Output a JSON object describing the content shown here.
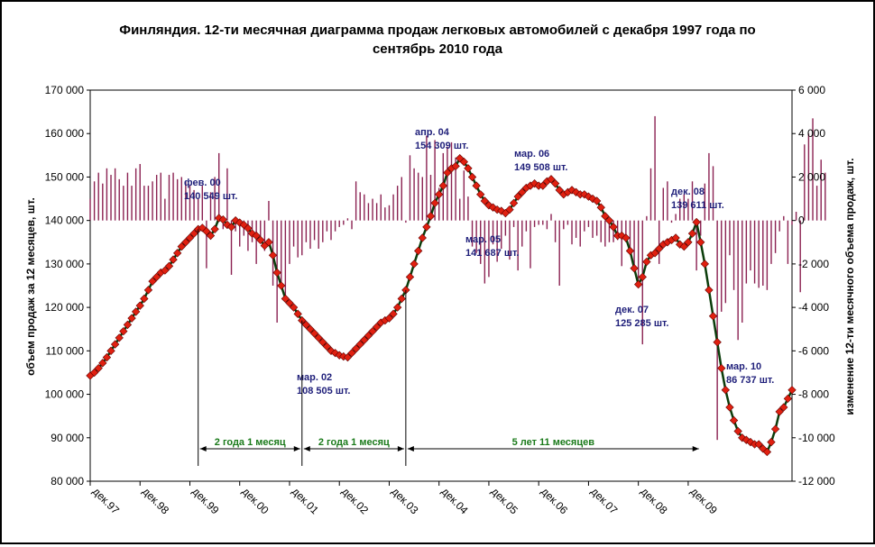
{
  "chart_data": {
    "type": "line",
    "title_line1": "Финляндия. 12-ти месячная диаграмма продаж легковых автомобилей  с декабря 1997 года по",
    "title_line2": "сентябрь 2010 года",
    "ylabel": "объем продаж за 12 месяцев, шт.",
    "y2label": "изменение 12-ти месячного объема продаж, шт.",
    "ylim": [
      80000,
      170000
    ],
    "y_ticks": [
      "80 000",
      "90 000",
      "100 000",
      "110 000",
      "120 000",
      "130 000",
      "140 000",
      "150 000",
      "160 000",
      "170 000"
    ],
    "y2lim": [
      -12000,
      6000
    ],
    "y2_ticks": [
      "-12 000",
      "-10 000",
      "-8 000",
      "-6 000",
      "-4 000",
      "-2 000",
      "0",
      "2 000",
      "4 000",
      "6 000"
    ],
    "x_labels": [
      "дек.97",
      "дек.98",
      "дек.99",
      "дек.00",
      "дек.01",
      "дек.02",
      "дек.03",
      "дек.04",
      "дек.05",
      "дек.06",
      "дек.07",
      "дек.08",
      "дек.09"
    ],
    "start_month": "дек.97",
    "series": [
      {
        "values": [
          104300,
          105000,
          106000,
          107200,
          108500,
          110000,
          111500,
          113000,
          114500,
          116000,
          117500,
          119000,
          120400,
          122000,
          124000,
          126000,
          127000,
          128000,
          128500,
          129500,
          131000,
          132500,
          134000,
          135000,
          136000,
          137000,
          138000,
          138300,
          137500,
          136500,
          138000,
          140549,
          140200,
          139000,
          138500,
          140000,
          139500,
          139000,
          138200,
          137000,
          136500,
          135500,
          134200,
          135000,
          132000,
          128000,
          125000,
          122000,
          121000,
          120000,
          118500,
          117000,
          116000,
          115000,
          114000,
          113000,
          112000,
          111000,
          110000,
          109500,
          109000,
          108700,
          108505,
          109500,
          110500,
          111500,
          112500,
          113500,
          114500,
          115500,
          116500,
          117000,
          117500,
          118500,
          120000,
          122000,
          124000,
          127000,
          130000,
          133000,
          136000,
          138500,
          141000,
          144000,
          146000,
          148000,
          151000,
          152000,
          152500,
          154309,
          153500,
          152000,
          150000,
          148000,
          146000,
          144500,
          143500,
          143000,
          142500,
          142200,
          141687,
          142500,
          144000,
          145500,
          146500,
          147500,
          148000,
          148500,
          148000,
          148000,
          149000,
          149508,
          148500,
          147000,
          146000,
          146500,
          147000,
          146500,
          146000,
          146000,
          145500,
          145000,
          144500,
          143000,
          141000,
          140000,
          138500,
          136500,
          136500,
          136000,
          133000,
          129000,
          125285,
          127000,
          130500,
          132000,
          132500,
          133500,
          134500,
          135000,
          135500,
          136000,
          134500,
          134000,
          135000,
          137000,
          139611,
          135000,
          130000,
          124000,
          118000,
          112000,
          106000,
          101000,
          97000,
          94000,
          91500,
          90000,
          89500,
          89000,
          88500,
          88500,
          87500,
          86737,
          89000,
          92000,
          96000,
          97000,
          99000,
          101000
        ]
      },
      {
        "values": [
          1000,
          1800,
          2200,
          1700,
          2400,
          2100,
          2400,
          1900,
          1600,
          2200,
          1600,
          2400,
          2600,
          1600,
          1600,
          1800,
          2100,
          2200,
          1000,
          2100,
          2200,
          1900,
          2000,
          1800,
          1600,
          1400,
          1000,
          1600,
          -2200,
          1300,
          2000,
          3100,
          -400,
          2400,
          -2500,
          -500,
          -1200,
          -700,
          -1400,
          -1000,
          -2000,
          -800,
          -1400,
          900,
          -3000,
          -4700,
          -3000,
          -3500,
          -2000,
          -1200,
          -1700,
          -1600,
          -1000,
          -1300,
          -900,
          -1300,
          -1000,
          -500,
          -900,
          -500,
          -300,
          -200,
          100,
          -400,
          1800,
          1300,
          1200,
          800,
          1000,
          800,
          1200,
          600,
          700,
          1200,
          1600,
          2000,
          -100,
          3000,
          2400,
          2200,
          2000,
          3900,
          2100,
          3700,
          1500,
          3100,
          3400,
          3600,
          2900,
          1000,
          2300,
          1100,
          -1200,
          -1500,
          -2000,
          -2900,
          -2600,
          -1100,
          -1900,
          -1300,
          -700,
          -1800,
          -300,
          -2300,
          -1200,
          -500,
          -2200,
          -300,
          -200,
          -200,
          -400,
          300,
          -1000,
          -3000,
          -400,
          -200,
          -1100,
          -800,
          -1200,
          -500,
          -300,
          -800,
          -700,
          -1000,
          -1200,
          -1000,
          -1000,
          -900,
          -2100,
          -1000,
          -1400,
          -2100,
          -3000,
          -5700,
          200,
          2400,
          4800,
          -2000,
          1500,
          1800,
          -100,
          300,
          1000,
          1200,
          1000,
          1800,
          -2300,
          -700,
          1700,
          3100,
          2500,
          -10100,
          -4200,
          -3800,
          -1600,
          -3200,
          -5500,
          -4700,
          -2900,
          -2300,
          -2900,
          -3100,
          -3000,
          -3200,
          -2000,
          -1500,
          -500,
          200,
          -2000,
          -200,
          400,
          -3300,
          3500,
          4000,
          4700,
          1600,
          2800,
          2200
        ]
      }
    ],
    "annotations": [
      {
        "month": "фев. 00",
        "value": "140 549 шт."
      },
      {
        "month": "мар. 02",
        "value": "108 505 шт."
      },
      {
        "month": "апр. 04",
        "value": "154 309 шт."
      },
      {
        "month": "мар. 05",
        "value": "141 687 шт."
      },
      {
        "month": "мар. 06",
        "value": "149 508 шт."
      },
      {
        "month": "дек. 07",
        "value": "125 285 шт."
      },
      {
        "month": "дек. 08",
        "value": "139 611 шт."
      },
      {
        "month": "мар. 10",
        "value": "86 737 шт."
      }
    ],
    "durations": [
      "2 года 1 месяц",
      "2 года 1 месяц",
      "5 лет 11 месяцев"
    ],
    "colors": {
      "line": "#0b3d0b",
      "marker": "#e02010",
      "marker_edge": "#600000",
      "bar": "#8b2252",
      "annotation": "#1f1f7a",
      "duration": "#1a7a1a"
    }
  }
}
